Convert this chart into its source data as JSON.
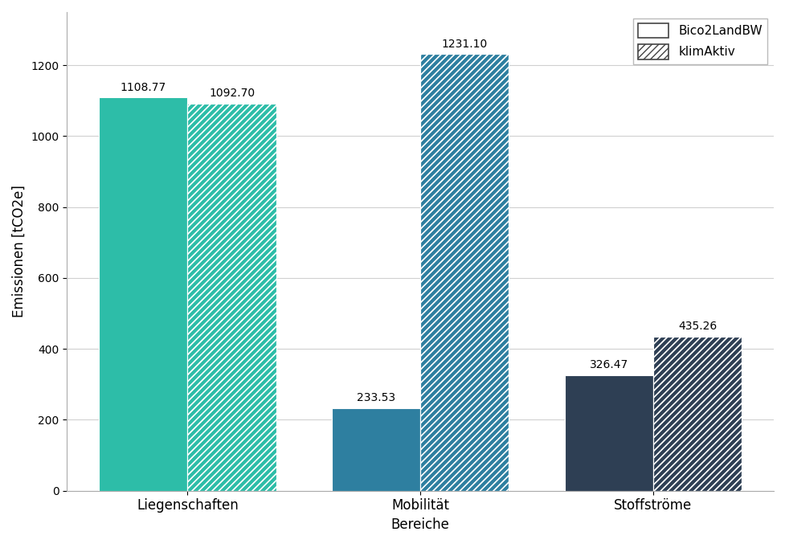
{
  "categories": [
    "Liegenschaften",
    "Mobilität",
    "Stoffströme"
  ],
  "bico2_values": [
    1108.77,
    233.53,
    326.47
  ],
  "klimaktiv_values": [
    1092.7,
    1231.1,
    435.26
  ],
  "bico2_colors": [
    "#2dbda8",
    "#2e7fa0",
    "#2e3f54"
  ],
  "klimaktiv_colors": [
    "#2dbda8",
    "#2e7fa0",
    "#2e3f54"
  ],
  "xlabel": "Bereiche",
  "ylabel": "Emissionen [tCO2e]",
  "ylim": [
    0,
    1350
  ],
  "bar_width": 0.38,
  "legend_labels": [
    "Bico2LandBW",
    "klimAktiv"
  ],
  "hatch_pattern": "////",
  "title": "",
  "figsize": [
    9.78,
    6.77
  ],
  "dpi": 100,
  "background_color": "#ffffff",
  "grid_color": "#d0d0d0"
}
